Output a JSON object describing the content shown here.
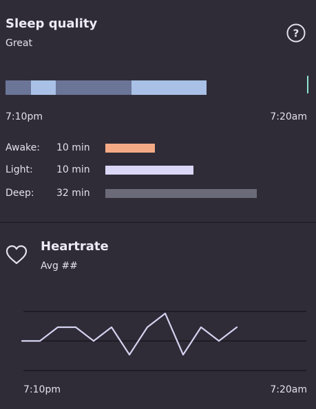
{
  "sleep": {
    "title": "Sleep quality",
    "rating": "Great",
    "help_icon": "question-circle-icon",
    "timeline": {
      "segments": [
        {
          "stage": "deep",
          "color": "#6b7598"
        },
        {
          "stage": "light",
          "color": "#a9c1e6"
        },
        {
          "stage": "deep",
          "color": "#6b7598"
        },
        {
          "stage": "light",
          "color": "#a9c1e6"
        }
      ],
      "marker_color": "#8fe8d4"
    },
    "start_time": "7:10pm",
    "end_time": "7:20am",
    "stages": [
      {
        "name": "Awake:",
        "duration": "10 min",
        "minutes": 10,
        "color": "#f4aa85"
      },
      {
        "name": "Light:",
        "duration": "10 min",
        "minutes": 10,
        "color": "#dad7f6"
      },
      {
        "name": "Deep:",
        "duration": "32 min",
        "minutes": 32,
        "color": "#6b6a78"
      }
    ]
  },
  "heartrate": {
    "title": "Heartrate",
    "average": "Avg ##",
    "icon": "heart-icon",
    "start_time": "7:10pm",
    "end_time": "7:20am",
    "line_color": "#d6d3f0",
    "gridline_color": "#141218"
  },
  "chart_data": {
    "type": "line",
    "title": "",
    "xlabel": "",
    "ylabel": "",
    "x_range": [
      "7:10pm",
      "7:20am"
    ],
    "gridlines": 3,
    "series": [
      {
        "values": [
          0,
          0,
          1,
          1,
          0,
          1,
          -1,
          1,
          2,
          -1,
          1,
          0,
          1
        ]
      }
    ],
    "ylim": [
      -2,
      2
    ],
    "grid": true
  }
}
